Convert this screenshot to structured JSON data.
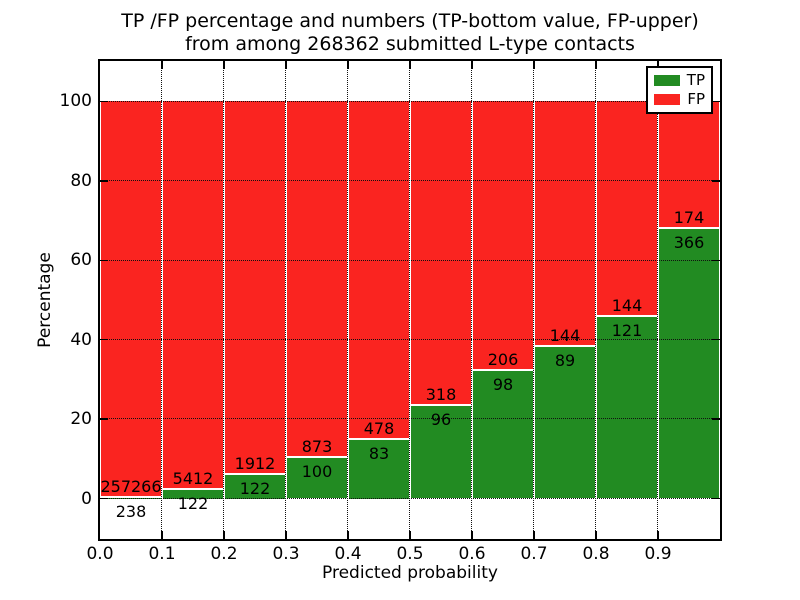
{
  "title": {
    "line1": "TP /FP percentage and numbers (TP-bottom value, FP-upper)",
    "line2": "from among 268362 submitted L-type contacts"
  },
  "chart_data": {
    "type": "bar",
    "variant": "stacked-100-percent",
    "title": "TP /FP percentage and numbers (TP-bottom value, FP-upper)\nfrom among 268362 submitted L-type contacts",
    "title_lines": [
      "TP /FP percentage and numbers (TP-bottom value, FP-upper)",
      "from among 268362 submitted L-type contacts"
    ],
    "total_submitted_contacts": 268362,
    "xlabel": "Predicted probability",
    "ylabel": "Percentage",
    "xlim": [
      0.0,
      1.0
    ],
    "ylim": [
      -10.2,
      110.2
    ],
    "grid": "dotted",
    "x_tick_labels": [
      "0.0",
      "0.1",
      "0.2",
      "0.3",
      "0.4",
      "0.5",
      "0.6",
      "0.7",
      "0.8",
      "0.9"
    ],
    "y_tick_values": [
      0,
      20,
      40,
      60,
      80,
      100
    ],
    "bins": {
      "start": 0.0,
      "width": 0.1,
      "count": 10
    },
    "series": [
      {
        "name": "TP",
        "position": "bottom",
        "color": "#228b22",
        "counts": [
          238,
          122,
          122,
          100,
          83,
          96,
          98,
          89,
          121,
          366
        ]
      },
      {
        "name": "FP",
        "position": "top",
        "color": "#fa2420",
        "counts": [
          257266,
          5412,
          1912,
          873,
          478,
          318,
          206,
          144,
          144,
          174
        ]
      }
    ],
    "tp_percent_of_bin": [
      0.09,
      2.2,
      6.0,
      10.3,
      14.8,
      23.2,
      32.2,
      38.2,
      45.7,
      67.8
    ],
    "legend": {
      "position": "upper-right",
      "entries": [
        {
          "label": "TP",
          "color": "#228b22"
        },
        {
          "label": "FP",
          "color": "#fa2420"
        }
      ]
    },
    "colors": {
      "tp": "#228b22",
      "fp": "#fa2420",
      "edge": "#ffffff",
      "grid": "#111111"
    }
  }
}
